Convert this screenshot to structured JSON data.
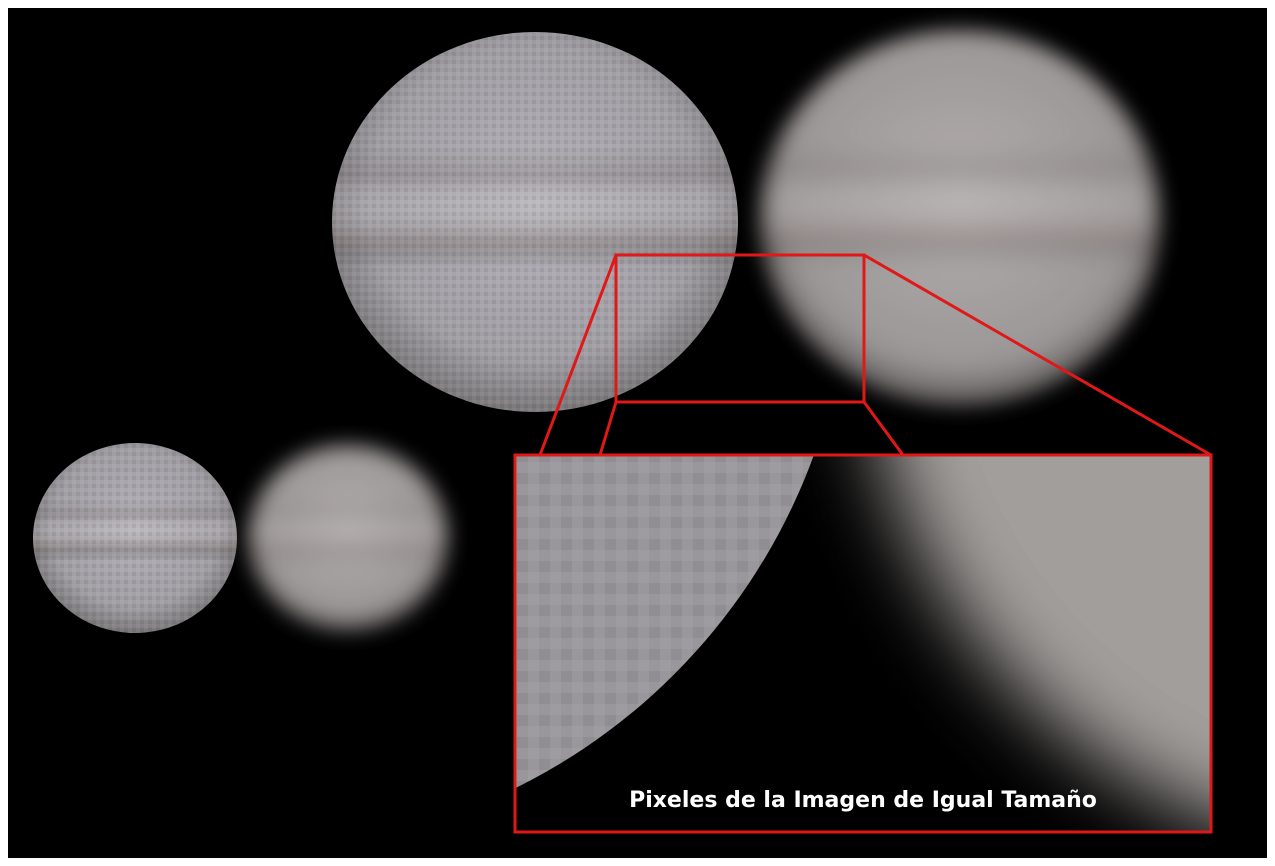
{
  "caption": {
    "text": "Pixeles de la Imagen de Igual Tamaño"
  }
}
